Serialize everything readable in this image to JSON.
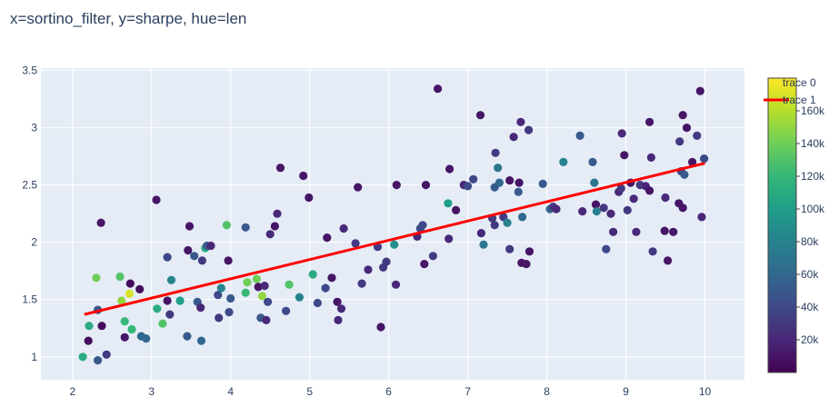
{
  "chart_data": {
    "type": "scatter",
    "title": "x=sortino_filter, y=sharpe, hue=len",
    "xlabel": "",
    "ylabel": "",
    "xlim": [
      1.6,
      10.5
    ],
    "ylim": [
      0.8,
      3.52
    ],
    "x_ticks": [
      "2",
      "3",
      "4",
      "5",
      "6",
      "7",
      "8",
      "9",
      "10"
    ],
    "y_ticks": [
      "1",
      "1.5",
      "2",
      "2.5",
      "3",
      "3.5"
    ],
    "grid": true,
    "background": "#e5ecf6",
    "colorscale": [
      "#440154",
      "#482878",
      "#3e4989",
      "#31688e",
      "#26828e",
      "#1f9e89",
      "#35b779",
      "#6ece58",
      "#b5de2b",
      "#fde725"
    ],
    "colorbar": {
      "range": [
        0,
        180000
      ],
      "ticks": [
        "20k",
        "40k",
        "60k",
        "80k",
        "100k",
        "120k",
        "140k",
        "160k"
      ],
      "tick_values": [
        20000,
        40000,
        60000,
        80000,
        100000,
        120000,
        140000,
        160000
      ]
    },
    "legend": {
      "placement": "top-right",
      "entries": [
        {
          "name": "trace 0",
          "kind": "marker"
        },
        {
          "name": "trace 1",
          "kind": "line",
          "color": "#ff0000"
        }
      ]
    },
    "trend_line": {
      "name": "trace 1",
      "color": "#ff0000",
      "x": [
        2.15,
        10.0
      ],
      "y": [
        1.37,
        2.69
      ]
    },
    "series": [
      {
        "name": "trace 0",
        "points": [
          [
            2.13,
            1.0,
            110000
          ],
          [
            2.32,
            0.97,
            50000
          ],
          [
            2.43,
            1.02,
            30000
          ],
          [
            2.21,
            1.27,
            110000
          ],
          [
            2.2,
            1.14,
            5000
          ],
          [
            2.37,
            1.27,
            5000
          ],
          [
            2.32,
            1.41,
            50000
          ],
          [
            2.36,
            2.17,
            10000
          ],
          [
            2.3,
            1.69,
            140000
          ],
          [
            2.6,
            1.7,
            130000
          ],
          [
            2.66,
            1.17,
            10000
          ],
          [
            2.66,
            1.31,
            120000
          ],
          [
            2.75,
            1.24,
            120000
          ],
          [
            2.62,
            1.49,
            150000
          ],
          [
            2.72,
            1.55,
            170000
          ],
          [
            2.73,
            1.64,
            5000
          ],
          [
            2.85,
            1.59,
            5000
          ],
          [
            2.87,
            1.18,
            60000
          ],
          [
            2.93,
            1.16,
            60000
          ],
          [
            3.07,
            1.42,
            110000
          ],
          [
            3.14,
            1.29,
            130000
          ],
          [
            3.06,
            2.37,
            10000
          ],
          [
            3.2,
            1.49,
            10000
          ],
          [
            3.23,
            1.37,
            30000
          ],
          [
            3.25,
            1.67,
            80000
          ],
          [
            3.2,
            1.87,
            40000
          ],
          [
            3.36,
            1.49,
            100000
          ],
          [
            3.45,
            1.18,
            50000
          ],
          [
            3.46,
            1.93,
            10000
          ],
          [
            3.48,
            2.14,
            10000
          ],
          [
            3.54,
            1.88,
            50000
          ],
          [
            3.58,
            1.48,
            50000
          ],
          [
            3.62,
            1.43,
            20000
          ],
          [
            3.63,
            1.14,
            60000
          ],
          [
            3.64,
            1.84,
            30000
          ],
          [
            3.68,
            1.95,
            110000
          ],
          [
            3.7,
            1.97,
            50000
          ],
          [
            3.75,
            1.97,
            20000
          ],
          [
            3.84,
            1.54,
            40000
          ],
          [
            3.85,
            1.34,
            30000
          ],
          [
            3.88,
            1.6,
            80000
          ],
          [
            3.95,
            2.15,
            130000
          ],
          [
            3.97,
            1.84,
            10000
          ],
          [
            3.98,
            1.39,
            40000
          ],
          [
            4.0,
            1.51,
            50000
          ],
          [
            4.19,
            2.13,
            50000
          ],
          [
            4.19,
            1.56,
            120000
          ],
          [
            4.21,
            1.65,
            140000
          ],
          [
            4.33,
            1.68,
            140000
          ],
          [
            4.35,
            1.61,
            10000
          ],
          [
            4.38,
            1.34,
            50000
          ],
          [
            4.4,
            1.53,
            150000
          ],
          [
            4.43,
            1.62,
            20000
          ],
          [
            4.45,
            1.32,
            20000
          ],
          [
            4.47,
            1.48,
            40000
          ],
          [
            4.5,
            2.07,
            20000
          ],
          [
            4.56,
            2.14,
            10000
          ],
          [
            4.59,
            2.25,
            20000
          ],
          [
            4.63,
            2.65,
            10000
          ],
          [
            4.7,
            1.4,
            40000
          ],
          [
            4.74,
            1.63,
            130000
          ],
          [
            4.87,
            1.52,
            80000
          ],
          [
            4.92,
            2.58,
            10000
          ],
          [
            4.99,
            2.39,
            10000
          ],
          [
            5.04,
            1.72,
            110000
          ],
          [
            5.1,
            1.47,
            40000
          ],
          [
            5.22,
            2.04,
            10000
          ],
          [
            5.2,
            1.6,
            40000
          ],
          [
            5.28,
            1.69,
            10000
          ],
          [
            5.35,
            1.48,
            10000
          ],
          [
            5.36,
            1.32,
            20000
          ],
          [
            5.4,
            1.42,
            20000
          ],
          [
            5.43,
            2.12,
            20000
          ],
          [
            5.58,
            1.99,
            30000
          ],
          [
            5.61,
            2.48,
            10000
          ],
          [
            5.66,
            1.64,
            30000
          ],
          [
            5.74,
            1.76,
            20000
          ],
          [
            5.86,
            1.96,
            30000
          ],
          [
            5.9,
            1.26,
            10000
          ],
          [
            5.93,
            1.78,
            30000
          ],
          [
            5.97,
            1.83,
            30000
          ],
          [
            6.07,
            1.98,
            90000
          ],
          [
            6.1,
            2.5,
            10000
          ],
          [
            6.09,
            1.63,
            20000
          ],
          [
            6.36,
            2.05,
            20000
          ],
          [
            6.4,
            2.12,
            40000
          ],
          [
            6.43,
            2.15,
            40000
          ],
          [
            6.45,
            1.81,
            10000
          ],
          [
            6.47,
            2.5,
            10000
          ],
          [
            6.56,
            1.88,
            30000
          ],
          [
            6.62,
            3.34,
            10000
          ],
          [
            6.75,
            2.34,
            100000
          ],
          [
            6.77,
            2.64,
            10000
          ],
          [
            6.76,
            2.03,
            20000
          ],
          [
            6.85,
            2.28,
            10000
          ],
          [
            6.95,
            2.5,
            20000
          ],
          [
            7.0,
            2.49,
            40000
          ],
          [
            7.07,
            2.55,
            40000
          ],
          [
            7.16,
            3.11,
            10000
          ],
          [
            7.17,
            2.08,
            20000
          ],
          [
            7.2,
            1.98,
            70000
          ],
          [
            7.31,
            2.21,
            30000
          ],
          [
            7.34,
            2.15,
            30000
          ],
          [
            7.35,
            2.78,
            30000
          ],
          [
            7.34,
            2.48,
            50000
          ],
          [
            7.38,
            2.65,
            70000
          ],
          [
            7.4,
            2.52,
            60000
          ],
          [
            7.45,
            2.22,
            30000
          ],
          [
            7.5,
            2.17,
            80000
          ],
          [
            7.53,
            2.54,
            10000
          ],
          [
            7.53,
            1.94,
            30000
          ],
          [
            7.58,
            2.92,
            20000
          ],
          [
            7.64,
            2.44,
            50000
          ],
          [
            7.65,
            2.52,
            10000
          ],
          [
            7.67,
            3.05,
            20000
          ],
          [
            7.69,
            2.22,
            60000
          ],
          [
            7.68,
            1.82,
            10000
          ],
          [
            7.74,
            1.81,
            10000
          ],
          [
            7.77,
            2.98,
            30000
          ],
          [
            7.78,
            1.92,
            10000
          ],
          [
            7.95,
            2.51,
            50000
          ],
          [
            8.04,
            2.29,
            60000
          ],
          [
            8.08,
            2.31,
            30000
          ],
          [
            8.12,
            2.29,
            20000
          ],
          [
            8.21,
            2.7,
            80000
          ],
          [
            8.42,
            2.93,
            50000
          ],
          [
            8.45,
            2.27,
            20000
          ],
          [
            8.58,
            2.7,
            50000
          ],
          [
            8.6,
            2.52,
            70000
          ],
          [
            8.62,
            2.33,
            10000
          ],
          [
            8.63,
            2.27,
            80000
          ],
          [
            8.72,
            2.3,
            30000
          ],
          [
            8.75,
            1.94,
            40000
          ],
          [
            8.81,
            2.25,
            20000
          ],
          [
            8.84,
            2.09,
            20000
          ],
          [
            8.91,
            2.44,
            20000
          ],
          [
            8.94,
            2.47,
            30000
          ],
          [
            8.95,
            2.95,
            20000
          ],
          [
            8.98,
            2.76,
            10000
          ],
          [
            9.02,
            2.28,
            30000
          ],
          [
            9.06,
            2.52,
            10000
          ],
          [
            9.1,
            2.38,
            20000
          ],
          [
            9.13,
            2.09,
            20000
          ],
          [
            9.18,
            2.5,
            30000
          ],
          [
            9.25,
            2.49,
            20000
          ],
          [
            9.3,
            3.05,
            10000
          ],
          [
            9.3,
            2.45,
            10000
          ],
          [
            9.32,
            2.74,
            20000
          ],
          [
            9.34,
            1.92,
            30000
          ],
          [
            9.49,
            2.1,
            10000
          ],
          [
            9.5,
            2.39,
            20000
          ],
          [
            9.53,
            1.84,
            10000
          ],
          [
            9.6,
            2.09,
            10000
          ],
          [
            9.67,
            2.34,
            10000
          ],
          [
            9.68,
            2.88,
            30000
          ],
          [
            9.7,
            2.62,
            40000
          ],
          [
            9.72,
            3.11,
            10000
          ],
          [
            9.74,
            2.59,
            50000
          ],
          [
            9.77,
            3.0,
            10000
          ],
          [
            9.84,
            2.7,
            10000
          ],
          [
            9.9,
            2.93,
            30000
          ],
          [
            9.94,
            3.32,
            10000
          ],
          [
            9.96,
            2.22,
            20000
          ],
          [
            9.99,
            2.73,
            40000
          ],
          [
            9.72,
            2.3,
            10000
          ]
        ]
      }
    ]
  }
}
